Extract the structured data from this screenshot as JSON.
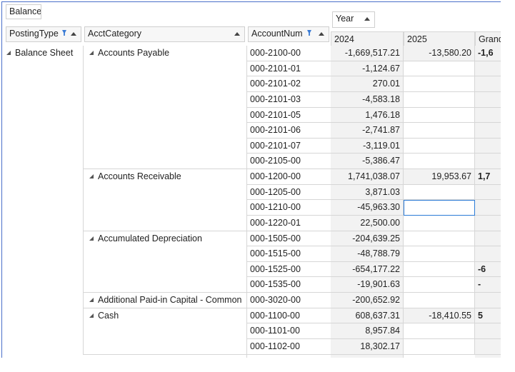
{
  "report_filter": "Balance",
  "row_fields": [
    "PostingType",
    "AcctCategory",
    "AccountNum"
  ],
  "column_field": "Year",
  "columns": [
    "2024",
    "2025",
    "Grand"
  ],
  "posting_type": "Balance Sheet",
  "categories": [
    {
      "name": "Accounts Payable",
      "rows": [
        {
          "account": "000-2100-00",
          "values": [
            "-1,669,517.21",
            "-13,580.20"
          ],
          "grand": "-1,6"
        },
        {
          "account": "000-2101-01",
          "values": [
            "-1,124.67"
          ]
        },
        {
          "account": "000-2101-02",
          "values": [
            "270.01"
          ]
        },
        {
          "account": "000-2101-03",
          "values": [
            "-4,583.18"
          ]
        },
        {
          "account": "000-2101-05",
          "values": [
            "1,476.18"
          ]
        },
        {
          "account": "000-2101-06",
          "values": [
            "-2,741.87"
          ]
        },
        {
          "account": "000-2101-07",
          "values": [
            "-3,119.01"
          ]
        },
        {
          "account": "000-2105-00",
          "values": [
            "-5,386.47"
          ]
        }
      ]
    },
    {
      "name": "Accounts Receivable",
      "rows": [
        {
          "account": "000-1200-00",
          "values": [
            "1,741,038.07",
            "19,953.67"
          ],
          "grand": "1,7"
        },
        {
          "account": "000-1205-00",
          "values": [
            "3,871.03"
          ]
        },
        {
          "account": "000-1210-00",
          "values": [
            "-45,963.30"
          ]
        },
        {
          "account": "000-1220-01",
          "values": [
            "22,500.00"
          ]
        }
      ]
    },
    {
      "name": "Accumulated Depreciation",
      "rows": [
        {
          "account": "000-1505-00",
          "values": [
            "-204,639.25"
          ]
        },
        {
          "account": "000-1515-00",
          "values": [
            "-48,788.79"
          ]
        },
        {
          "account": "000-1525-00",
          "values": [
            "-654,177.22"
          ],
          "grand": "-6"
        },
        {
          "account": "000-1535-00",
          "values": [
            "-19,901.63"
          ],
          "grand": "-"
        }
      ]
    },
    {
      "name": "Additional Paid-in Capital - Common",
      "rows": [
        {
          "account": "000-3020-00",
          "values": [
            "-200,652.92"
          ]
        }
      ]
    },
    {
      "name": "Cash",
      "rows": [
        {
          "account": "000-1100-00",
          "values": [
            "608,637.31",
            "-18,410.55"
          ],
          "grand": "5"
        },
        {
          "account": "000-1101-00",
          "values": [
            "8,957.84"
          ]
        },
        {
          "account": "000-1102-00",
          "values": [
            "18,302.17"
          ]
        }
      ]
    }
  ]
}
